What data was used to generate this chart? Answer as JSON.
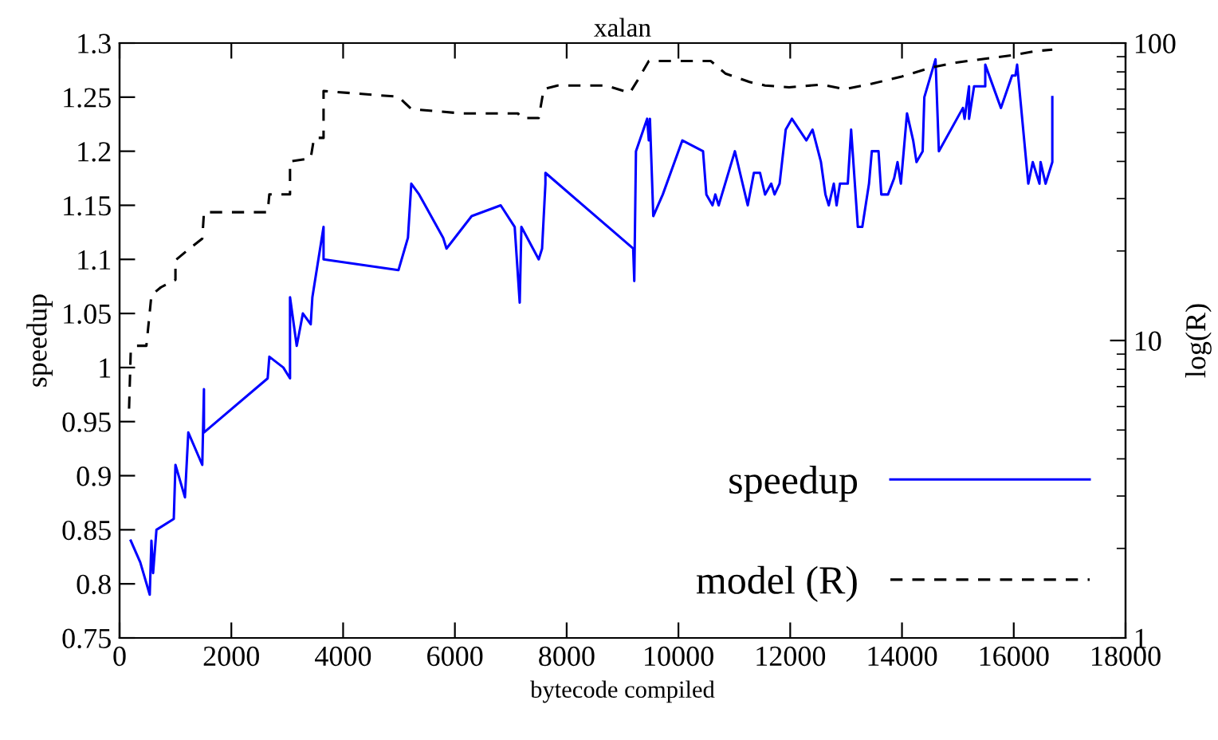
{
  "chart_data": {
    "type": "line",
    "title": "xalan",
    "xlabel": "bytecode compiled",
    "ylabel": "speedup",
    "y2label": "log(R)",
    "xlim": [
      0,
      18000
    ],
    "xticks": [
      0,
      2000,
      4000,
      6000,
      8000,
      10000,
      12000,
      14000,
      16000,
      18000
    ],
    "ylim": [
      0.75,
      1.3
    ],
    "yticks": [
      0.75,
      0.8,
      0.85,
      0.9,
      0.95,
      1,
      1.05,
      1.1,
      1.15,
      1.2,
      1.25,
      1.3
    ],
    "y2lim": [
      1,
      100
    ],
    "y2ticks": [
      1,
      10,
      100
    ],
    "log": "y2",
    "grid": false,
    "legend": "bottom right",
    "series": [
      {
        "name": "speedup",
        "color": "#0000ff",
        "line_style": "solid",
        "x": [
          200,
          370,
          540,
          570,
          600,
          660,
          970,
          1000,
          1170,
          1230,
          1480,
          1510,
          1510,
          2650,
          2680,
          2930,
          3050,
          3050,
          3170,
          3280,
          3420,
          3450,
          3650,
          3650,
          4990,
          5160,
          5220,
          5360,
          5790,
          5850,
          6300,
          6820,
          7070,
          7160,
          7190,
          7500,
          7560,
          7620,
          7620,
          9190,
          9210,
          9240,
          9440,
          9470,
          9490,
          9550,
          9720,
          10070,
          10440,
          10500,
          10610,
          10660,
          10720,
          11010,
          11240,
          11350,
          11460,
          11550,
          11660,
          11720,
          11810,
          11920,
          12030,
          12290,
          12400,
          12550,
          12630,
          12690,
          12780,
          12830,
          12890,
          13030,
          13090,
          13210,
          13290,
          13410,
          13460,
          13580,
          13630,
          13750,
          13860,
          13920,
          13980,
          14090,
          14200,
          14260,
          14370,
          14400,
          14600,
          14660,
          15090,
          15120,
          15200,
          15200,
          15290,
          15490,
          15490,
          15770,
          15970,
          16030,
          16060,
          16260,
          16340,
          16460,
          16480,
          16570,
          16690,
          16690
        ],
        "values": [
          0.84,
          0.82,
          0.79,
          0.84,
          0.81,
          0.85,
          0.86,
          0.91,
          0.88,
          0.94,
          0.91,
          0.98,
          0.94,
          0.99,
          1.01,
          1.0,
          0.99,
          1.065,
          1.02,
          1.05,
          1.04,
          1.065,
          1.13,
          1.1,
          1.09,
          1.12,
          1.17,
          1.16,
          1.12,
          1.11,
          1.14,
          1.15,
          1.13,
          1.06,
          1.13,
          1.1,
          1.11,
          1.17,
          1.18,
          1.11,
          1.08,
          1.2,
          1.23,
          1.21,
          1.23,
          1.14,
          1.16,
          1.21,
          1.2,
          1.16,
          1.15,
          1.16,
          1.15,
          1.2,
          1.15,
          1.18,
          1.18,
          1.16,
          1.17,
          1.16,
          1.17,
          1.22,
          1.23,
          1.21,
          1.22,
          1.19,
          1.16,
          1.15,
          1.17,
          1.15,
          1.17,
          1.17,
          1.22,
          1.13,
          1.13,
          1.17,
          1.2,
          1.2,
          1.16,
          1.16,
          1.175,
          1.19,
          1.17,
          1.235,
          1.21,
          1.19,
          1.2,
          1.25,
          1.285,
          1.2,
          1.24,
          1.23,
          1.26,
          1.23,
          1.26,
          1.26,
          1.28,
          1.24,
          1.27,
          1.27,
          1.28,
          1.17,
          1.19,
          1.17,
          1.19,
          1.17,
          1.19,
          1.25
        ]
      },
      {
        "name": "model (R)",
        "color": "#000000",
        "line_style": "dashed",
        "axis": "y2",
        "x": [
          170,
          200,
          310,
          480,
          570,
          740,
          1000,
          1000,
          1200,
          1480,
          1510,
          2650,
          2680,
          3050,
          3050,
          3420,
          3480,
          3650,
          3650,
          4990,
          5220,
          6130,
          7130,
          7190,
          7500,
          7590,
          7840,
          8700,
          9130,
          9270,
          9470,
          9840,
          10580,
          10840,
          11270,
          11550,
          11980,
          12550,
          12980,
          13460,
          13980,
          14550,
          14970,
          15970,
          16400,
          16690
        ],
        "values": [
          5.9,
          9.2,
          9.6,
          9.6,
          14.2,
          15.1,
          16,
          18.6,
          20,
          22,
          27,
          27,
          31,
          31,
          40,
          41,
          48,
          48,
          69,
          66,
          60,
          58,
          58,
          56,
          56,
          70,
          72,
          72,
          68,
          75,
          87,
          87,
          87,
          79,
          74,
          72,
          71,
          72.5,
          70,
          73,
          77,
          83,
          86,
          91,
          94,
          95
        ]
      }
    ]
  }
}
